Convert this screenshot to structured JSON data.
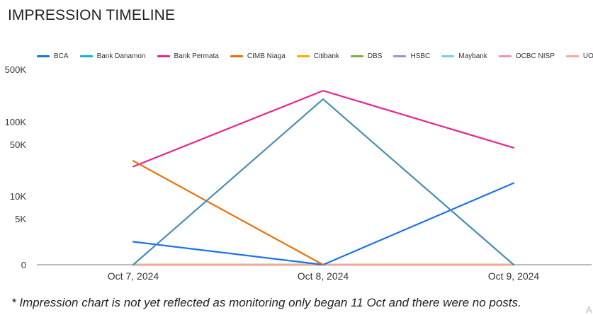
{
  "title": "IMPRESSION TIMELINE",
  "footnote": "* Impression chart is not yet reflected as monitoring only began 11 Oct and there were no posts.",
  "corner_mark": "A",
  "chart_data": {
    "type": "line",
    "y_scale": "log-like",
    "categories": [
      "Oct 7, 2024",
      "Oct 8, 2024",
      "Oct 9, 2024"
    ],
    "y_ticks": [
      {
        "value": 0,
        "label": "0"
      },
      {
        "value": 5000,
        "label": "5K"
      },
      {
        "value": 10000,
        "label": "10K"
      },
      {
        "value": 50000,
        "label": "50K"
      },
      {
        "value": 100000,
        "label": "100K"
      },
      {
        "value": 500000,
        "label": "500K"
      }
    ],
    "legend_position": "top",
    "grid": false,
    "series": [
      {
        "name": "BCA",
        "color": "#1a73e8",
        "values": [
          2500,
          0,
          15000
        ]
      },
      {
        "name": "Bank Danamon",
        "color": "#12b5cb",
        "values": [
          0,
          0,
          0
        ]
      },
      {
        "name": "Bank Permata",
        "color": "#e52592",
        "values": [
          25000,
          260000,
          45000
        ]
      },
      {
        "name": "CIMB Niaga",
        "color": "#e8710a",
        "values": [
          30000,
          0,
          null
        ]
      },
      {
        "name": "Citibank",
        "color": "#f9ab00",
        "values": [
          0,
          0,
          0
        ]
      },
      {
        "name": "DBS",
        "color": "#7cb342",
        "values": [
          0,
          0,
          0
        ]
      },
      {
        "name": "HSBC",
        "color": "#9e8fd6",
        "values": [
          0,
          0,
          0
        ]
      },
      {
        "name": "Maybank",
        "color": "#7fcbf0",
        "values": [
          0,
          0,
          0
        ]
      },
      {
        "name": "OCBC NISP",
        "color": "#f48fb1",
        "values": [
          0,
          0,
          0
        ]
      },
      {
        "name": "UOB",
        "color": "#f8a892",
        "values": [
          0,
          0,
          0
        ]
      },
      {
        "name": "",
        "color": "#4a8db5",
        "values": [
          0,
          200000,
          0
        ]
      }
    ]
  }
}
